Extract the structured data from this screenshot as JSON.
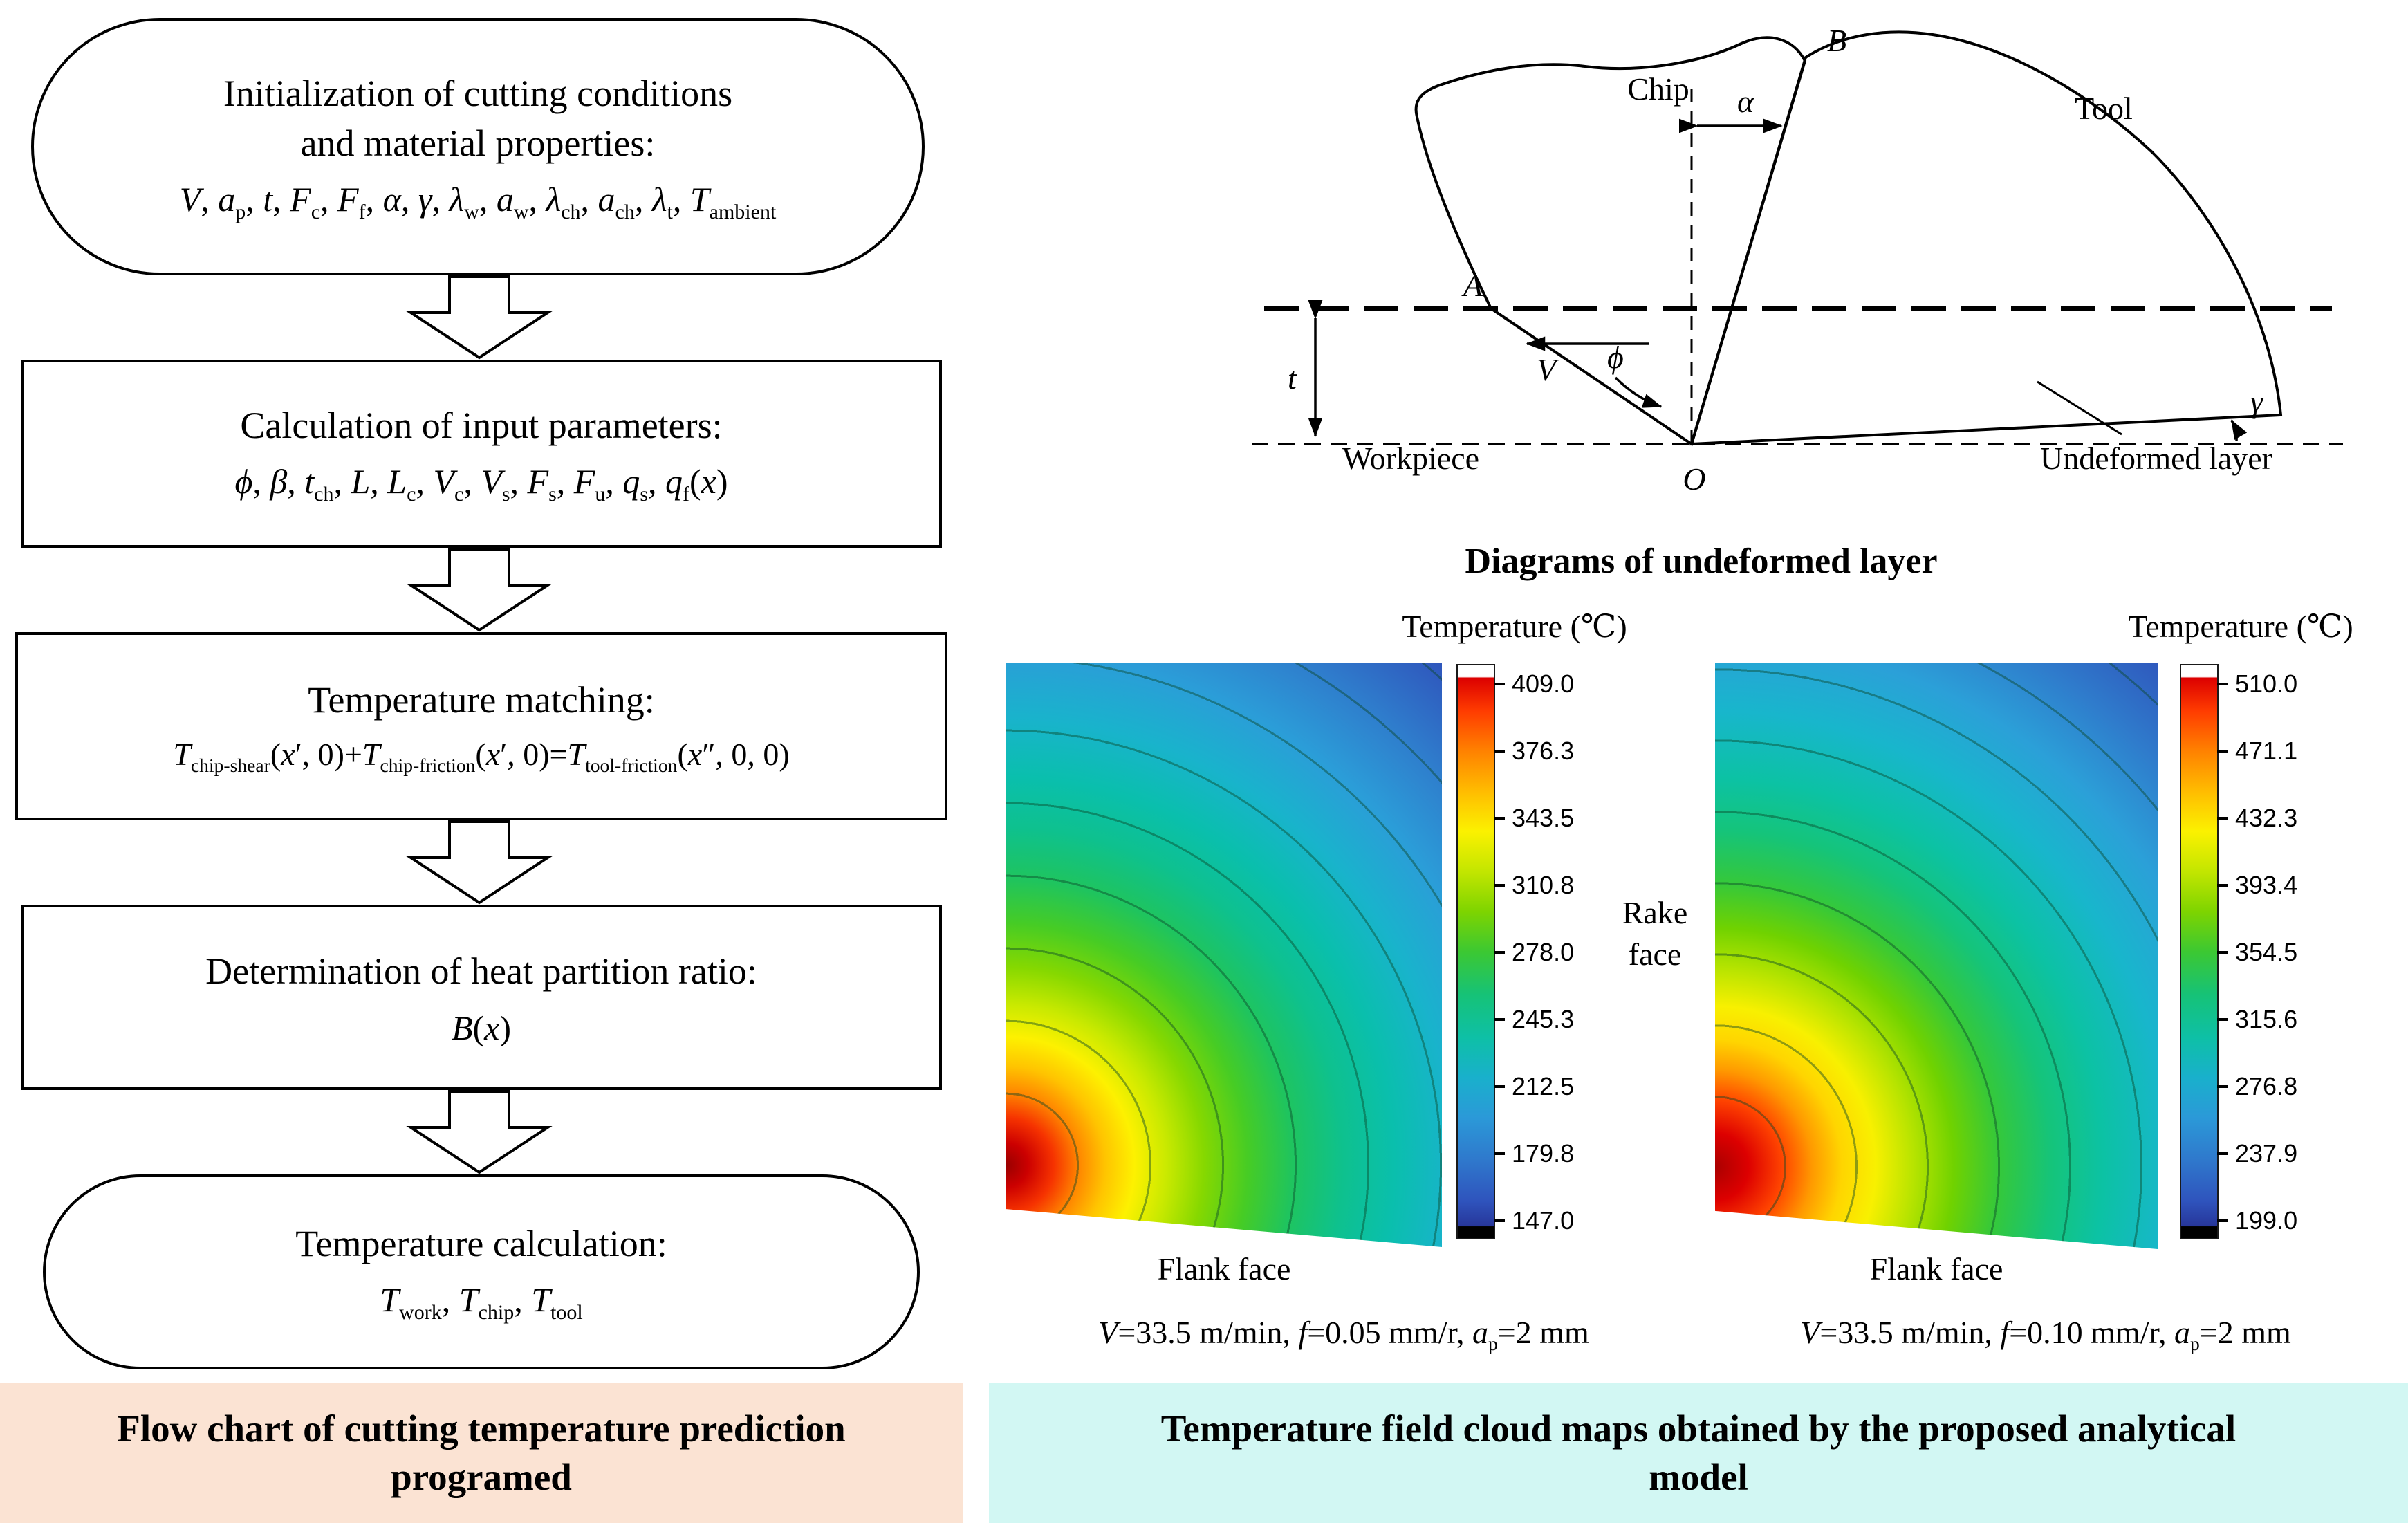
{
  "flowchart": {
    "box1": {
      "title_line1": "Initialization of cutting conditions",
      "title_line2": "and material properties:",
      "formula_html": "<i>V</i>, <i>a</i><sub>p</sub>, <i>t</i>, <i>F</i><sub>c</sub>, <i>F</i><sub>f</sub>, <i>α</i>, <i>γ</i>, <i>λ</i><sub>w</sub>, <i>a</i><sub>w</sub>, <i>λ</i><sub>ch</sub>, <i>a</i><sub>ch</sub>, <i>λ</i><sub>t</sub>, <i>T</i><sub>ambient</sub>"
    },
    "box2": {
      "title": "Calculation of input parameters:",
      "formula_html": "<i>ϕ</i>, <i>β</i>, <i>t</i><sub>ch</sub>, <i>L</i>, <i>L</i><sub>c</sub>, <i>V</i><sub>c</sub>, <i>V</i><sub>s</sub>, <i>F</i><sub>s</sub>, <i>F</i><sub>u</sub>, <i>q</i><sub>s</sub>, <i>q</i><sub>f</sub>(<i>x</i>)"
    },
    "box3": {
      "title": "Temperature matching:",
      "formula_html": "<i>T</i><sub>chip-shear</sub>(<i>x</i>′, 0)+<i>T</i><sub>chip-friction</sub>(<i>x</i>′, 0)=<i>T</i><sub>tool-friction</sub>(<i>x</i>″, 0, 0)"
    },
    "box4": {
      "title": "Determination of heat partition ratio:",
      "formula_html": "<i>B</i>(<i>x</i>)"
    },
    "box5": {
      "title": "Temperature calculation:",
      "formula_html": "<i>T</i><sub>work</sub>, <i>T</i><sub>chip</sub>, <i>T</i><sub>tool</sub>"
    },
    "caption_line1": "Flow chart of cutting temperature prediction",
    "caption_line2": "programed"
  },
  "schematic": {
    "caption": "Diagrams of undeformed layer",
    "labels": {
      "chip": "Chip",
      "tool": "Tool",
      "workpiece": "Workpiece",
      "undeformed_layer": "Undeformed layer",
      "point_a": "A",
      "point_b": "B",
      "point_o": "O",
      "alpha": "α",
      "phi": "ϕ",
      "gamma": "γ",
      "thickness": "t",
      "velocity": "V"
    }
  },
  "maps": {
    "colorbar_title": "Temperature (℃)",
    "left": {
      "ticks": [
        "409.0",
        "376.3",
        "343.5",
        "310.8",
        "278.0",
        "245.3",
        "212.5",
        "179.8",
        "147.0"
      ],
      "flank_label": "Flank face",
      "caption_html": "<i>V</i>=33.5 m/min, <i>f</i>=0.05 mm/r, <i>a</i><sub>p</sub>=2 mm"
    },
    "right": {
      "ticks": [
        "510.0",
        "471.1",
        "432.3",
        "393.4",
        "354.5",
        "315.6",
        "276.8",
        "237.9",
        "199.0"
      ],
      "flank_label": "Flank face",
      "caption_html": "<i>V</i>=33.5 m/min, <i>f</i>=0.10 mm/r, <i>a</i><sub>p</sub>=2 mm"
    },
    "rake_line1": "Rake",
    "rake_line2": "face",
    "caption_line1": "Temperature field cloud maps obtained by the proposed analytical",
    "caption_line2": "model"
  },
  "colors": {
    "left_caption_bg": "#fbe3d3",
    "right_caption_bg": "#d2f7f3",
    "hot": "#cc0000",
    "cold": "#293f9e"
  }
}
